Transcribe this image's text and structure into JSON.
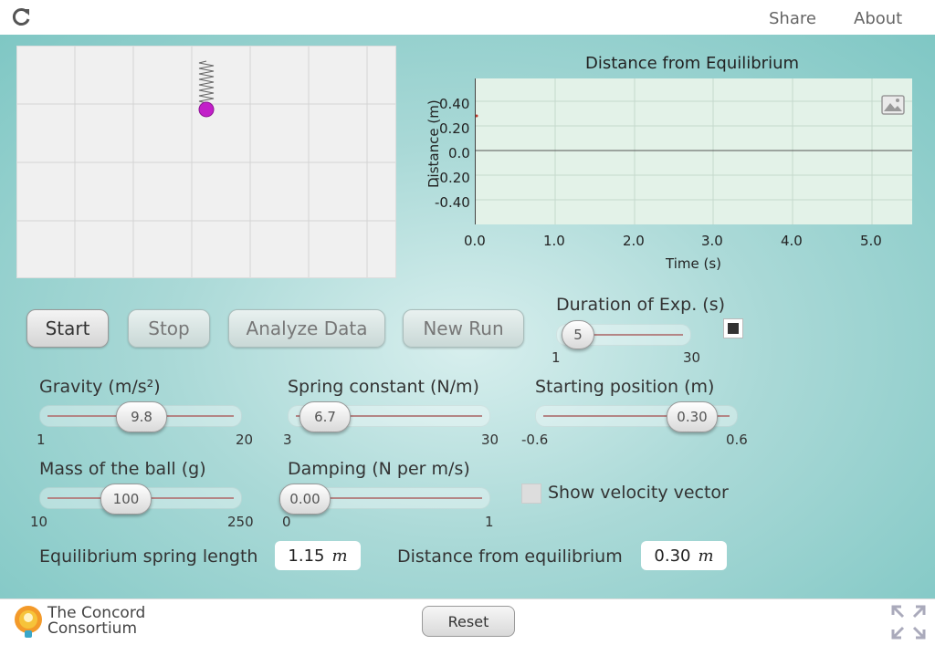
{
  "header": {
    "share_label": "Share",
    "about_label": "About"
  },
  "graph": {
    "title": "Distance from Equilibrium",
    "ylabel": "Distance (m)",
    "xlabel": "Time (s)",
    "yticks": [
      "0.40",
      "0.20",
      "0.0",
      "-0.20",
      "-0.40"
    ],
    "xticks": [
      "0.0",
      "1.0",
      "2.0",
      "3.0",
      "4.0",
      "5.0"
    ]
  },
  "buttons": {
    "start": "Start",
    "stop": "Stop",
    "analyze": "Analyze Data",
    "new_run": "New Run"
  },
  "duration": {
    "label": "Duration of Exp. (s)",
    "value": "5",
    "min": "1",
    "max": "30"
  },
  "gravity": {
    "label": "Gravity (m/s²)",
    "value": "9.8",
    "min": "1",
    "max": "20"
  },
  "spring": {
    "label": "Spring constant (N/m)",
    "value": "6.7",
    "min": "3",
    "max": "30"
  },
  "start_pos": {
    "label": "Starting position (m)",
    "value": "0.30",
    "min": "-0.6",
    "max": "0.6"
  },
  "mass": {
    "label": "Mass of the ball (g)",
    "value": "100",
    "min": "10",
    "max": "250"
  },
  "damping": {
    "label": "Damping (N per m/s)",
    "value": "0.00",
    "min": "0",
    "max": "1"
  },
  "velocity": {
    "label": "Show velocity vector"
  },
  "equilibrium": {
    "label": "Equilibrium spring length",
    "value": "1.15",
    "unit": "m"
  },
  "distance": {
    "label": "Distance from equilibrium",
    "value": "0.30",
    "unit": "m"
  },
  "footer": {
    "logo_line1": "The Concord",
    "logo_line2": "Consortium",
    "reset_label": "Reset"
  },
  "colors": {
    "ball": "#c21fc9",
    "plot_bg": "#e3f2e8"
  }
}
